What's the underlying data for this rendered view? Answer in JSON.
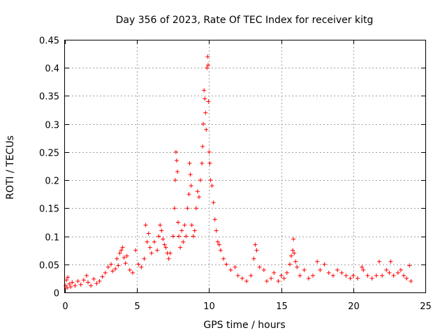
{
  "chart_data": {
    "type": "scatter",
    "title": "Day 356 of 2023, Rate Of TEC Index for receiver kitg",
    "xlabel": "GPS time / hours",
    "ylabel": "ROTI / TECUs",
    "xlim": [
      0,
      25
    ],
    "ylim": [
      0,
      0.45
    ],
    "x_ticks": [
      0,
      5,
      10,
      15,
      20,
      25
    ],
    "y_ticks": [
      0,
      0.05,
      0.1,
      0.15,
      0.2,
      0.25,
      0.3,
      0.35,
      0.4,
      0.45
    ],
    "x_tick_labels": [
      "0",
      "5",
      "10",
      "15",
      "20",
      "25"
    ],
    "y_tick_labels": [
      "0",
      "0.05",
      "0.1",
      "0.15",
      "0.2",
      "0.25",
      "0.3",
      "0.35",
      "0.4",
      "0.45"
    ],
    "grid": true,
    "marker": "+",
    "color": "#ff0000",
    "series": [
      {
        "name": "ROTI",
        "points": [
          [
            0.05,
            0.012
          ],
          [
            0.1,
            0.022
          ],
          [
            0.15,
            0.008
          ],
          [
            0.2,
            0.027
          ],
          [
            0.3,
            0.015
          ],
          [
            0.4,
            0.01
          ],
          [
            0.5,
            0.018
          ],
          [
            0.7,
            0.012
          ],
          [
            0.9,
            0.02
          ],
          [
            1.1,
            0.014
          ],
          [
            1.3,
            0.022
          ],
          [
            1.5,
            0.03
          ],
          [
            1.6,
            0.018
          ],
          [
            1.8,
            0.012
          ],
          [
            2.0,
            0.024
          ],
          [
            2.2,
            0.016
          ],
          [
            2.4,
            0.02
          ],
          [
            2.6,
            0.028
          ],
          [
            2.8,
            0.035
          ],
          [
            3.0,
            0.045
          ],
          [
            3.2,
            0.05
          ],
          [
            3.3,
            0.038
          ],
          [
            3.5,
            0.042
          ],
          [
            3.6,
            0.06
          ],
          [
            3.7,
            0.048
          ],
          [
            3.8,
            0.07
          ],
          [
            3.9,
            0.075
          ],
          [
            4.0,
            0.08
          ],
          [
            4.1,
            0.062
          ],
          [
            4.2,
            0.052
          ],
          [
            4.3,
            0.065
          ],
          [
            4.5,
            0.04
          ],
          [
            4.7,
            0.035
          ],
          [
            4.9,
            0.075
          ],
          [
            5.1,
            0.05
          ],
          [
            5.3,
            0.045
          ],
          [
            5.5,
            0.06
          ],
          [
            5.6,
            0.12
          ],
          [
            5.7,
            0.09
          ],
          [
            5.8,
            0.105
          ],
          [
            5.9,
            0.08
          ],
          [
            6.0,
            0.07
          ],
          [
            6.2,
            0.09
          ],
          [
            6.4,
            0.075
          ],
          [
            6.5,
            0.1
          ],
          [
            6.6,
            0.12
          ],
          [
            6.7,
            0.11
          ],
          [
            6.8,
            0.095
          ],
          [
            6.9,
            0.085
          ],
          [
            7.0,
            0.08
          ],
          [
            7.1,
            0.07
          ],
          [
            7.2,
            0.06
          ],
          [
            7.3,
            0.07
          ],
          [
            7.5,
            0.1
          ],
          [
            7.6,
            0.15
          ],
          [
            7.65,
            0.2
          ],
          [
            7.7,
            0.25
          ],
          [
            7.75,
            0.235
          ],
          [
            7.8,
            0.215
          ],
          [
            7.85,
            0.125
          ],
          [
            7.9,
            0.1
          ],
          [
            8.0,
            0.08
          ],
          [
            8.1,
            0.11
          ],
          [
            8.2,
            0.09
          ],
          [
            8.3,
            0.12
          ],
          [
            8.4,
            0.1
          ],
          [
            8.5,
            0.15
          ],
          [
            8.6,
            0.175
          ],
          [
            8.65,
            0.23
          ],
          [
            8.7,
            0.21
          ],
          [
            8.75,
            0.19
          ],
          [
            8.8,
            0.12
          ],
          [
            8.9,
            0.1
          ],
          [
            9.0,
            0.11
          ],
          [
            9.1,
            0.15
          ],
          [
            9.2,
            0.18
          ],
          [
            9.3,
            0.17
          ],
          [
            9.4,
            0.2
          ],
          [
            9.5,
            0.23
          ],
          [
            9.55,
            0.26
          ],
          [
            9.6,
            0.3
          ],
          [
            9.65,
            0.36
          ],
          [
            9.7,
            0.345
          ],
          [
            9.75,
            0.32
          ],
          [
            9.8,
            0.29
          ],
          [
            9.85,
            0.4
          ],
          [
            9.9,
            0.42
          ],
          [
            9.93,
            0.405
          ],
          [
            9.95,
            0.34
          ],
          [
            10.0,
            0.25
          ],
          [
            10.05,
            0.23
          ],
          [
            10.1,
            0.2
          ],
          [
            10.2,
            0.19
          ],
          [
            10.3,
            0.16
          ],
          [
            10.4,
            0.13
          ],
          [
            10.5,
            0.11
          ],
          [
            10.6,
            0.09
          ],
          [
            10.7,
            0.085
          ],
          [
            10.8,
            0.075
          ],
          [
            11.0,
            0.06
          ],
          [
            11.2,
            0.05
          ],
          [
            11.5,
            0.04
          ],
          [
            11.8,
            0.045
          ],
          [
            12.0,
            0.03
          ],
          [
            12.3,
            0.025
          ],
          [
            12.6,
            0.02
          ],
          [
            12.9,
            0.03
          ],
          [
            13.1,
            0.06
          ],
          [
            13.2,
            0.085
          ],
          [
            13.3,
            0.075
          ],
          [
            13.5,
            0.045
          ],
          [
            13.8,
            0.04
          ],
          [
            14.0,
            0.02
          ],
          [
            14.3,
            0.025
          ],
          [
            14.5,
            0.035
          ],
          [
            14.8,
            0.02
          ],
          [
            15.0,
            0.03
          ],
          [
            15.2,
            0.025
          ],
          [
            15.4,
            0.035
          ],
          [
            15.6,
            0.05
          ],
          [
            15.7,
            0.065
          ],
          [
            15.8,
            0.075
          ],
          [
            15.85,
            0.095
          ],
          [
            15.9,
            0.07
          ],
          [
            16.0,
            0.055
          ],
          [
            16.1,
            0.045
          ],
          [
            16.3,
            0.03
          ],
          [
            16.6,
            0.04
          ],
          [
            16.9,
            0.025
          ],
          [
            17.2,
            0.03
          ],
          [
            17.5,
            0.055
          ],
          [
            17.7,
            0.04
          ],
          [
            18.0,
            0.05
          ],
          [
            18.3,
            0.035
          ],
          [
            18.6,
            0.03
          ],
          [
            18.9,
            0.04
          ],
          [
            19.2,
            0.035
          ],
          [
            19.5,
            0.03
          ],
          [
            19.8,
            0.025
          ],
          [
            20.0,
            0.03
          ],
          [
            20.3,
            0.025
          ],
          [
            20.6,
            0.045
          ],
          [
            20.7,
            0.04
          ],
          [
            21.0,
            0.03
          ],
          [
            21.3,
            0.025
          ],
          [
            21.6,
            0.03
          ],
          [
            21.8,
            0.055
          ],
          [
            22.0,
            0.03
          ],
          [
            22.3,
            0.04
          ],
          [
            22.5,
            0.035
          ],
          [
            22.6,
            0.055
          ],
          [
            22.8,
            0.03
          ],
          [
            23.1,
            0.035
          ],
          [
            23.3,
            0.04
          ],
          [
            23.5,
            0.03
          ],
          [
            23.7,
            0.025
          ],
          [
            23.9,
            0.048
          ],
          [
            24.0,
            0.02
          ]
        ]
      }
    ]
  }
}
